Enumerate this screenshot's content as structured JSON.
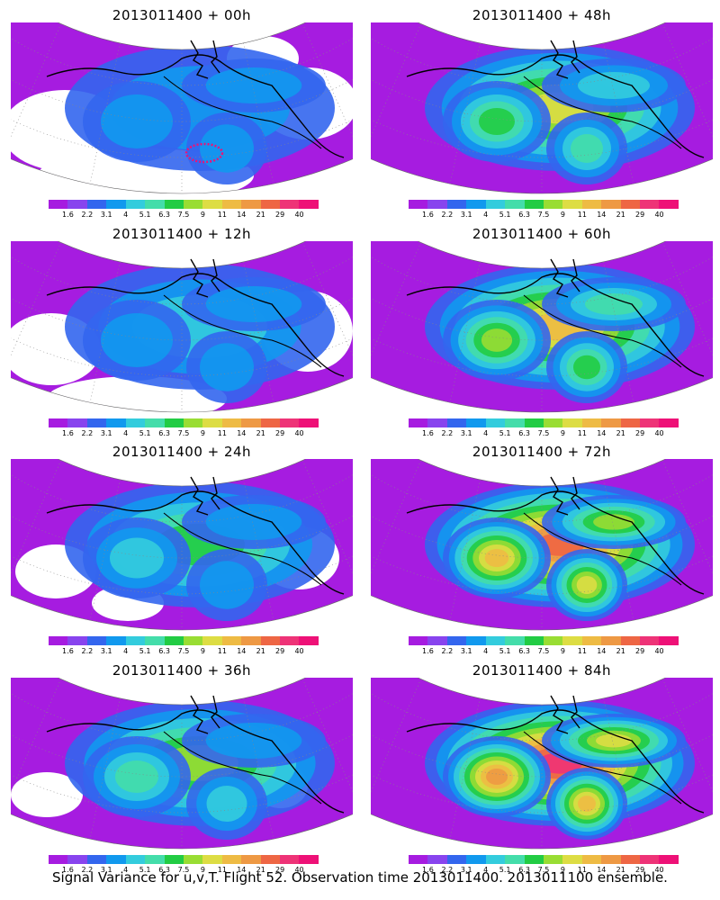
{
  "panels": [
    {
      "title": "2013011400 + 00h",
      "forecast_hour": 0
    },
    {
      "title": "2013011400 + 48h",
      "forecast_hour": 48
    },
    {
      "title": "2013011400 + 12h",
      "forecast_hour": 12
    },
    {
      "title": "2013011400 + 60h",
      "forecast_hour": 60
    },
    {
      "title": "2013011400 + 24h",
      "forecast_hour": 24
    },
    {
      "title": "2013011400 + 72h",
      "forecast_hour": 72
    },
    {
      "title": "2013011400 + 36h",
      "forecast_hour": 36
    },
    {
      "title": "2013011400 + 84h",
      "forecast_hour": 84
    }
  ],
  "colorbar": {
    "labels": [
      "1.6",
      "2.2",
      "3.1",
      "4",
      "5.1",
      "6.3",
      "7.5",
      "9",
      "11",
      "14",
      "21",
      "29",
      "40"
    ],
    "colors": [
      "#a61ce0",
      "#8844ee",
      "#3366ee",
      "#1199ee",
      "#33ccdd",
      "#44ddaa",
      "#22cc44",
      "#99dd33",
      "#dddd44",
      "#eebb44",
      "#ee9944",
      "#ee6644",
      "#ee3377",
      "#ee1177"
    ]
  },
  "caption": "Signal Variance for u,v,T. Flight 52. Observation time 2013011400. 2013011100 ensemble."
}
